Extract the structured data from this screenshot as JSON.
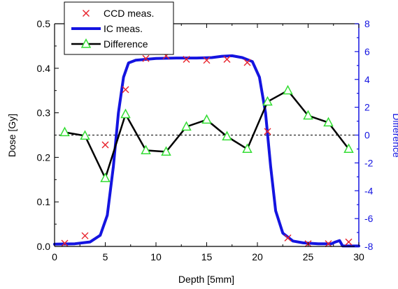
{
  "chart_data": {
    "type": "line",
    "xlabel": "Depth [5mm]",
    "ylabel_left": "Dose [Gy]",
    "ylabel_right": "Difference",
    "xlim": [
      0,
      30
    ],
    "ylim_left": [
      0,
      0.5
    ],
    "ylim_right": [
      -8,
      8
    ],
    "x_ticks": [
      0,
      5,
      10,
      15,
      20,
      25,
      30
    ],
    "y_left_ticks": [
      0.0,
      0.1,
      0.2,
      0.3,
      0.4,
      0.5
    ],
    "y_right_ticks": [
      -8,
      -6,
      -4,
      -2,
      0,
      2,
      4,
      6,
      8
    ],
    "x_tick_labels": [
      "0",
      "5",
      "10",
      "15",
      "20",
      "25",
      "30"
    ],
    "y_left_tick_labels": [
      "0.0",
      "0.1",
      "0.2",
      "0.3",
      "0.4",
      "0.5"
    ],
    "y_right_tick_labels": [
      "-8",
      "-6",
      "-4",
      "-2",
      "0",
      "2",
      "4",
      "6",
      "8"
    ],
    "reference_line": {
      "axis": "right",
      "value": 0,
      "style": "dashed"
    },
    "legend_position": "top-left",
    "colors": {
      "ccd": "#e8202a",
      "ic": "#1414e0",
      "difference_line": "#000000",
      "difference_marker": "#33dd33",
      "right_axis": "#1414e0"
    },
    "series": [
      {
        "name": "CCD meas.",
        "axis": "left",
        "style": "markers-x",
        "points": [
          [
            1,
            0.007
          ],
          [
            3,
            0.024
          ],
          [
            5,
            0.228
          ],
          [
            7,
            0.352
          ],
          [
            9,
            0.422
          ],
          [
            11,
            0.428
          ],
          [
            13,
            0.42
          ],
          [
            15,
            0.418
          ],
          [
            17,
            0.42
          ],
          [
            19,
            0.413
          ],
          [
            21,
            0.258
          ],
          [
            23,
            0.019
          ],
          [
            25,
            0.006
          ],
          [
            27,
            0.006
          ],
          [
            29,
            0.01
          ]
        ]
      },
      {
        "name": "IC meas.",
        "axis": "left",
        "style": "line",
        "points": [
          [
            0,
            0.005
          ],
          [
            2,
            0.006
          ],
          [
            3.5,
            0.01
          ],
          [
            4.5,
            0.025
          ],
          [
            5.2,
            0.07
          ],
          [
            5.8,
            0.18
          ],
          [
            6.3,
            0.3
          ],
          [
            6.8,
            0.38
          ],
          [
            7.3,
            0.412
          ],
          [
            8,
            0.418
          ],
          [
            10,
            0.422
          ],
          [
            12,
            0.423
          ],
          [
            14,
            0.423
          ],
          [
            15.5,
            0.424
          ],
          [
            16.5,
            0.427
          ],
          [
            17.5,
            0.428
          ],
          [
            18.5,
            0.424
          ],
          [
            19.5,
            0.415
          ],
          [
            20.2,
            0.38
          ],
          [
            20.8,
            0.3
          ],
          [
            21.3,
            0.18
          ],
          [
            21.8,
            0.08
          ],
          [
            22.5,
            0.03
          ],
          [
            23.5,
            0.012
          ],
          [
            24.5,
            0.008
          ],
          [
            26,
            0.006
          ],
          [
            27.3,
            0.006
          ],
          [
            27.7,
            0.01
          ],
          [
            28.1,
            0.013
          ],
          [
            28.4,
            0.001
          ],
          [
            30,
            0.001
          ]
        ]
      },
      {
        "name": "Difference",
        "axis": "right",
        "style": "line-triangle",
        "points": [
          [
            1,
            0.2
          ],
          [
            3,
            -0.05
          ],
          [
            5,
            -3.1
          ],
          [
            7,
            1.5
          ],
          [
            9,
            -1.1
          ],
          [
            11,
            -1.2
          ],
          [
            13,
            0.6
          ],
          [
            15,
            1.1
          ],
          [
            17,
            -0.1
          ],
          [
            19,
            -1.0
          ],
          [
            21,
            2.4
          ],
          [
            23,
            3.2
          ],
          [
            25,
            1.4
          ],
          [
            27,
            0.9
          ],
          [
            29,
            -1.0
          ]
        ]
      }
    ]
  }
}
